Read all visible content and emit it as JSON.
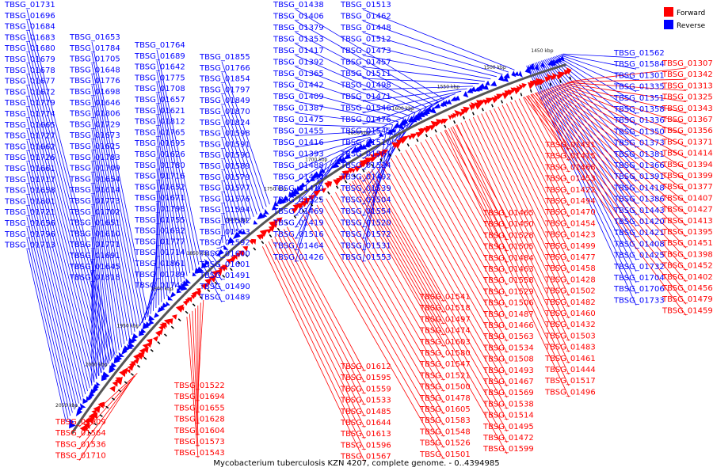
{
  "caption": "Mycobacterium tuberculosis KZN 4207, complete genome. - 0..4394985",
  "legend": {
    "forward": {
      "label": "Forward",
      "color": "#ff0000"
    },
    "reverse": {
      "label": "Reverse",
      "color": "#0000ff"
    }
  },
  "scale_labels": [
    "1450 kbp",
    "1500 kbp",
    "1550 kbp",
    "1600 kbp",
    "1650 kbp",
    "1700 kbp",
    "1750 kbp",
    "1800 kbp",
    "1850 kbp",
    "1900 kbp",
    "1950 kbp",
    "2000 kbp",
    "2050 kbp"
  ],
  "blue_labels": [
    "TBSG_01731",
    "TBSG_01696",
    "TBSG_01684",
    "TBSG_01683",
    "TBSG_01680",
    "TBSG_01679",
    "TBSG_01678",
    "TBSG_01677",
    "TBSG_01672",
    "TBSG_01779",
    "TBSG_01774",
    "TBSG_01665",
    "TBSG_01727",
    "TBSG_01662",
    "TBSG_01726",
    "TBSG_01661",
    "TBSG_01717",
    "TBSG_01658",
    "TBSG_01801",
    "TBSG_01721",
    "TBSG_01656",
    "TBSG_01796",
    "TBSG_01713",
    "TBSG_01653",
    "TBSG_01784",
    "TBSG_01705",
    "TBSG_01648",
    "TBSG_01776",
    "TBSG_01698",
    "TBSG_01646",
    "TBSG_01806",
    "TBSG_01729",
    "TBSG_01673",
    "TBSG_01625",
    "TBSG_01783",
    "TBSG_01709",
    "TBSG_01654",
    "TBSG_01614",
    "TBSG_01773",
    "TBSG_01702",
    "TBSG_01651",
    "TBSG_01610",
    "TBSG_01771",
    "TBSG_01691",
    "TBSG_01645",
    "TBSG_01818",
    "TBSG_01764",
    "TBSG_01689",
    "TBSG_01642",
    "TBSG_01775",
    "TBSG_01708",
    "TBSG_01657",
    "TBSG_01621",
    "TBSG_01812",
    "TBSG_01765",
    "TBSG_01695",
    "TBSG_01626",
    "TBSG_01780",
    "TBSG_01716",
    "TBSG_01652",
    "TBSG_01671",
    "TBSG_01798",
    "TBSG_01755",
    "TBSG_01692",
    "TBSG_01777",
    "TBSG_01714",
    "TBSG_01861",
    "TBSG_01789",
    "TBSG_01746",
    "TBSG_01855",
    "TBSG_01766",
    "TBSG_01854",
    "TBSG_01797",
    "TBSG_01849",
    "TBSG_01870",
    "TBSG_01824",
    "TBSG_01598",
    "TBSG_01591",
    "TBSG_01590",
    "TBSG_01589",
    "TBSG_01579",
    "TBSG_01577",
    "TBSG_01576",
    "TBSG_01594",
    "TBSG_01582",
    "TBSG_01593",
    "TBSG_01592",
    "TBSG_01600",
    "TBSG_01601",
    "TBSG_01491",
    "TBSG_01490",
    "TBSG_01489",
    "TBSG_01438",
    "TBSG_01406",
    "TBSG_01379",
    "TBSG_01353",
    "TBSG_01417",
    "TBSG_01392",
    "TBSG_01365",
    "TBSG_01442",
    "TBSG_01409",
    "TBSG_01387",
    "TBSG_01475",
    "TBSG_01455",
    "TBSG_01416",
    "TBSG_01393",
    "TBSG_01488",
    "TBSG_01436",
    "TBSG_01410",
    "TBSG_01525",
    "TBSG_01469",
    "TBSG_01419",
    "TBSG_01516",
    "TBSG_01464",
    "TBSG_01426",
    "TBSG_01513",
    "TBSG_01462",
    "TBSG_01448",
    "TBSG_01512",
    "TBSG_01473",
    "TBSG_01457",
    "TBSG_01511",
    "TBSG_01498",
    "TBSG_01471",
    "TBSG_01546",
    "TBSG_01476",
    "TBSG_01545",
    "TBSG_01510",
    "TBSG_01561",
    "TBSG_01524",
    "TBSG_01492",
    "TBSG_01539",
    "TBSG_01504",
    "TBSG_01554",
    "TBSG_01520",
    "TBSG_01572",
    "TBSG_01531",
    "TBSG_01553",
    "TBSG_01562",
    "TBSG_01584",
    "TBSG_01301",
    "TBSG_01335",
    "TBSG_01351",
    "TBSG_01358",
    "TBSG_01336",
    "TBSG_01350",
    "TBSG_01373",
    "TBSG_01381",
    "TBSG_01366",
    "TBSG_01391",
    "TBSG_01418",
    "TBSG_01386",
    "TBSG_01443",
    "TBSG_01420",
    "TBSG_01421",
    "TBSG_01408",
    "TBSG_01425",
    "TBSG_01732",
    "TBSG_01704",
    "TBSG_01706",
    "TBSG_01733"
  ],
  "red_labels": [
    "TBSG_01307",
    "TBSG_01342",
    "TBSG_01313",
    "TBSG_01325",
    "TBSG_01343",
    "TBSG_01367",
    "TBSG_01356",
    "TBSG_01371",
    "TBSG_01414",
    "TBSG_01394",
    "TBSG_01399",
    "TBSG_01377",
    "TBSG_01407",
    "TBSG_01427",
    "TBSG_01413",
    "TBSG_01395",
    "TBSG_01451",
    "TBSG_01398",
    "TBSG_01452",
    "TBSG_01402",
    "TBSG_01456",
    "TBSG_01479",
    "TBSG_01459",
    "TBSG_01431",
    "TBSG_01415",
    "TBSG_01468",
    "TBSG_01453",
    "TBSG_01422",
    "TBSG_01494",
    "TBSG_01470",
    "TBSG_01454",
    "TBSG_01423",
    "TBSG_01499",
    "TBSG_01477",
    "TBSG_01458",
    "TBSG_01428",
    "TBSG_01502",
    "TBSG_01482",
    "TBSG_01460",
    "TBSG_01432",
    "TBSG_01503",
    "TBSG_01483",
    "TBSG_01461",
    "TBSG_01444",
    "TBSG_01517",
    "TBSG_01496",
    "TBSG_01465",
    "TBSG_01450",
    "TBSG_01528",
    "TBSG_01505",
    "TBSG_01484",
    "TBSG_01463",
    "TBSG_01558",
    "TBSG_01529",
    "TBSG_01506",
    "TBSG_01487",
    "TBSG_01466",
    "TBSG_01563",
    "TBSG_01534",
    "TBSG_01508",
    "TBSG_01493",
    "TBSG_01467",
    "TBSG_01569",
    "TBSG_01538",
    "TBSG_01514",
    "TBSG_01495",
    "TBSG_01472",
    "TBSG_01599",
    "TBSG_01571",
    "TBSG_01541",
    "TBSG_01518",
    "TBSG_01497",
    "TBSG_01474",
    "TBSG_01603",
    "TBSG_01580",
    "TBSG_01547",
    "TBSG_01521",
    "TBSG_01500",
    "TBSG_01478",
    "TBSG_01605",
    "TBSG_01583",
    "TBSG_01548",
    "TBSG_01526",
    "TBSG_01501",
    "TBSG_01480",
    "TBSG_01606",
    "TBSG_01587",
    "TBSG_01557",
    "TBSG_01530",
    "TBSG_01509",
    "TBSG_01481",
    "TBSG_01643",
    "TBSG_01612",
    "TBSG_01595",
    "TBSG_01559",
    "TBSG_01533",
    "TBSG_01485",
    "TBSG_01644",
    "TBSG_01613",
    "TBSG_01596",
    "TBSG_01567",
    "TBSG_01535",
    "TBSG_01515",
    "TBSG_01681",
    "TBSG_01647",
    "TBSG_01615",
    "TBSG_01597",
    "TBSG_01540",
    "TBSG_01519",
    "TBSG_01690",
    "TBSG_01649",
    "TBSG_01623",
    "TBSG_01602",
    "TBSG_01570",
    "TBSG_01542",
    "TBSG_01522",
    "TBSG_01694",
    "TBSG_01655",
    "TBSG_01628",
    "TBSG_01604",
    "TBSG_01573",
    "TBSG_01543",
    "TBSG_01523",
    "TBSG_01664",
    "TBSG_01637",
    "TBSG_01607",
    "TBSG_01581",
    "TBSG_01549",
    "TBSG_01527",
    "TBSG_01666",
    "TBSG_01638",
    "TBSG_01608",
    "TBSG_01585",
    "TBSG_01555",
    "TBSG_01532",
    "TBSG_01707",
    "TBSG_01668",
    "TBSG_01639",
    "TBSG_01609",
    "TBSG_01564",
    "TBSG_01536",
    "TBSG_01710",
    "TBSG_01565",
    "TBSG_01537",
    "TBSG_01574",
    "TBSG_01544",
    "TBSG_01586",
    "TBSG_01550",
    "TBSG_01734",
    "TBSG_01735",
    "TBSG_01769",
    "TBSG_01770",
    "TBSG_01772",
    "TBSG_01778",
    "TBSG_01805",
    "TBSG_01813",
    "TBSG_01815",
    "TBSG_01853"
  ]
}
